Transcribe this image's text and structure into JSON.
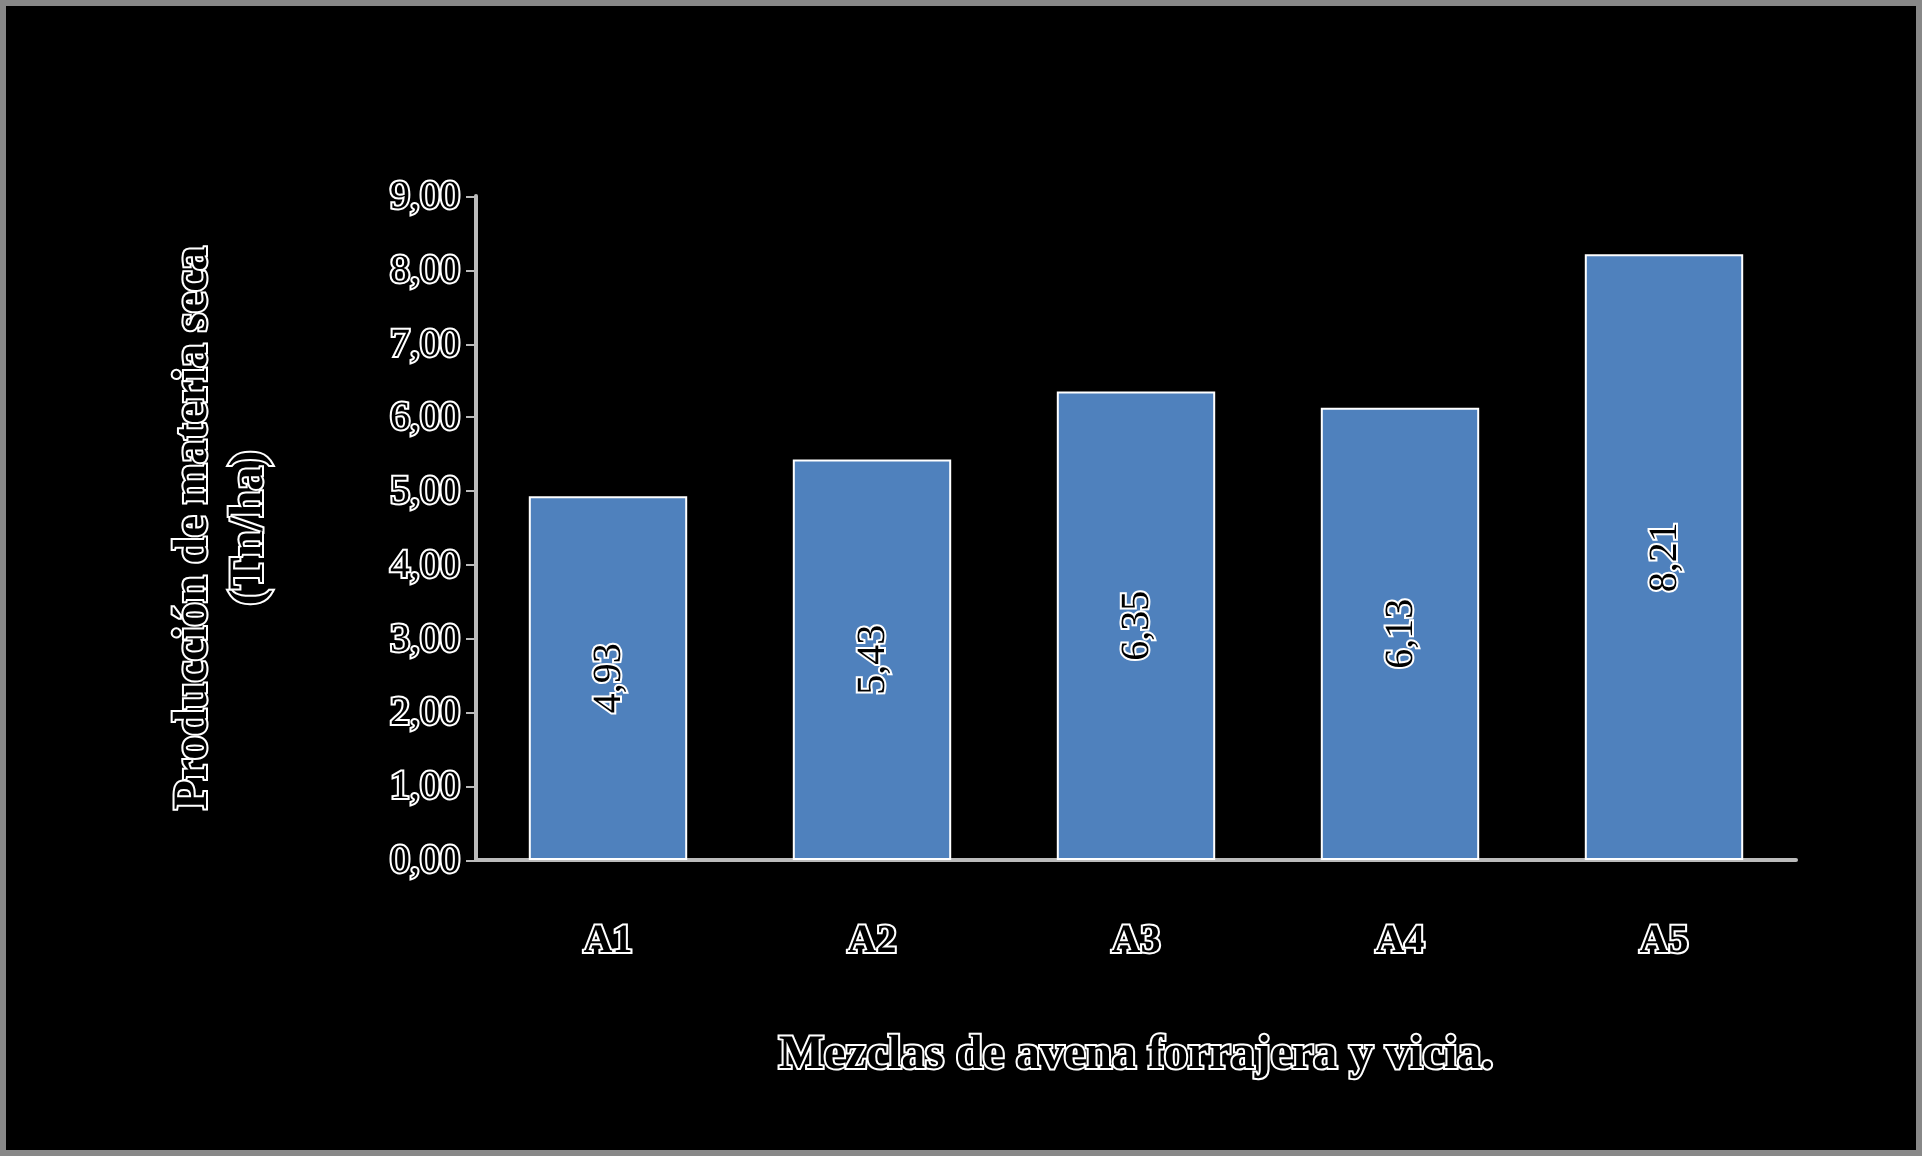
{
  "chart_data": {
    "type": "bar",
    "xlabel": "Mezclas de avena forrajera y vicia.",
    "ylabel": "Producción de materia seca\n(Tn/ha)",
    "categories": [
      "A1",
      "A2",
      "A3",
      "A4",
      "A5"
    ],
    "values": [
      4.93,
      5.43,
      6.35,
      6.13,
      8.21
    ],
    "value_labels": [
      "4,93",
      "5,43",
      "6,35",
      "6,13",
      "8,21"
    ],
    "color": "#4f81bd",
    "ylim": [
      0,
      9
    ],
    "yticks": [
      {
        "value": 0,
        "label": "0,00"
      },
      {
        "value": 1,
        "label": "1,00"
      },
      {
        "value": 2,
        "label": "2,00"
      },
      {
        "value": 3,
        "label": "3,00"
      },
      {
        "value": 4,
        "label": "4,00"
      },
      {
        "value": 5,
        "label": "5,00"
      },
      {
        "value": 6,
        "label": "6,00"
      },
      {
        "value": 7,
        "label": "7,00"
      },
      {
        "value": 8,
        "label": "8,00"
      },
      {
        "value": 9,
        "label": "9,00"
      }
    ],
    "grid": false
  }
}
